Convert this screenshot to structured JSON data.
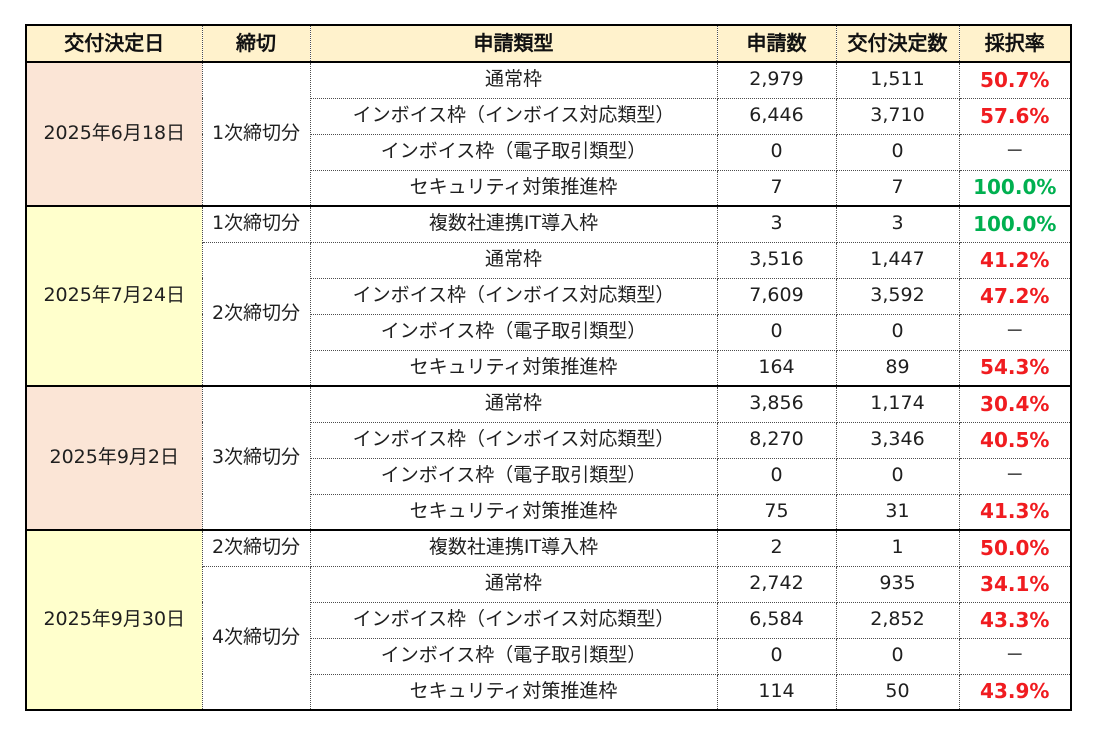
{
  "colors": {
    "header_bg": "#fff2cc",
    "date_pink_bg": "#fbe5d6",
    "date_yellow_bg": "#ffffcc",
    "rate_red": "#f01c20",
    "rate_green": "#00b050",
    "border_black": "#000000"
  },
  "chart_data": {
    "type": "table",
    "columns": [
      "交付決定日",
      "締切",
      "申請類型",
      "申請数",
      "交付決定数",
      "採択率"
    ],
    "groups": [
      {
        "date": "2025年6月18日",
        "tone": "pink",
        "deadlines": [
          {
            "label": "1次締切分",
            "rows": [
              {
                "type": "通常枠",
                "apps": "2,979",
                "dec": "1,511",
                "rate": "50.7%"
              },
              {
                "type": "インボイス枠（インボイス対応類型）",
                "apps": "6,446",
                "dec": "3,710",
                "rate": "57.6%"
              },
              {
                "type": "インボイス枠（電子取引類型）",
                "apps": "0",
                "dec": "0",
                "rate": "－"
              },
              {
                "type": "セキュリティ対策推進枠",
                "apps": "7",
                "dec": "7",
                "rate": "100.0%"
              }
            ]
          }
        ]
      },
      {
        "date": "2025年7月24日",
        "tone": "yellow",
        "deadlines": [
          {
            "label": "1次締切分",
            "rows": [
              {
                "type": "複数社連携IT導入枠",
                "apps": "3",
                "dec": "3",
                "rate": "100.0%"
              }
            ]
          },
          {
            "label": "2次締切分",
            "rows": [
              {
                "type": "通常枠",
                "apps": "3,516",
                "dec": "1,447",
                "rate": "41.2%"
              },
              {
                "type": "インボイス枠（インボイス対応類型）",
                "apps": "7,609",
                "dec": "3,592",
                "rate": "47.2%"
              },
              {
                "type": "インボイス枠（電子取引類型）",
                "apps": "0",
                "dec": "0",
                "rate": "－"
              },
              {
                "type": "セキュリティ対策推進枠",
                "apps": "164",
                "dec": "89",
                "rate": "54.3%"
              }
            ]
          }
        ]
      },
      {
        "date": "2025年9月2日",
        "tone": "pink",
        "deadlines": [
          {
            "label": "3次締切分",
            "rows": [
              {
                "type": "通常枠",
                "apps": "3,856",
                "dec": "1,174",
                "rate": "30.4%"
              },
              {
                "type": "インボイス枠（インボイス対応類型）",
                "apps": "8,270",
                "dec": "3,346",
                "rate": "40.5%"
              },
              {
                "type": "インボイス枠（電子取引類型）",
                "apps": "0",
                "dec": "0",
                "rate": "－"
              },
              {
                "type": "セキュリティ対策推進枠",
                "apps": "75",
                "dec": "31",
                "rate": "41.3%"
              }
            ]
          }
        ]
      },
      {
        "date": "2025年9月30日",
        "tone": "yellow",
        "deadlines": [
          {
            "label": "2次締切分",
            "rows": [
              {
                "type": "複数社連携IT導入枠",
                "apps": "2",
                "dec": "1",
                "rate": "50.0%"
              }
            ]
          },
          {
            "label": "4次締切分",
            "rows": [
              {
                "type": "通常枠",
                "apps": "2,742",
                "dec": "935",
                "rate": "34.1%"
              },
              {
                "type": "インボイス枠（インボイス対応類型）",
                "apps": "6,584",
                "dec": "2,852",
                "rate": "43.3%"
              },
              {
                "type": "インボイス枠（電子取引類型）",
                "apps": "0",
                "dec": "0",
                "rate": "－"
              },
              {
                "type": "セキュリティ対策推進枠",
                "apps": "114",
                "dec": "50",
                "rate": "43.9%"
              }
            ]
          }
        ]
      }
    ]
  }
}
